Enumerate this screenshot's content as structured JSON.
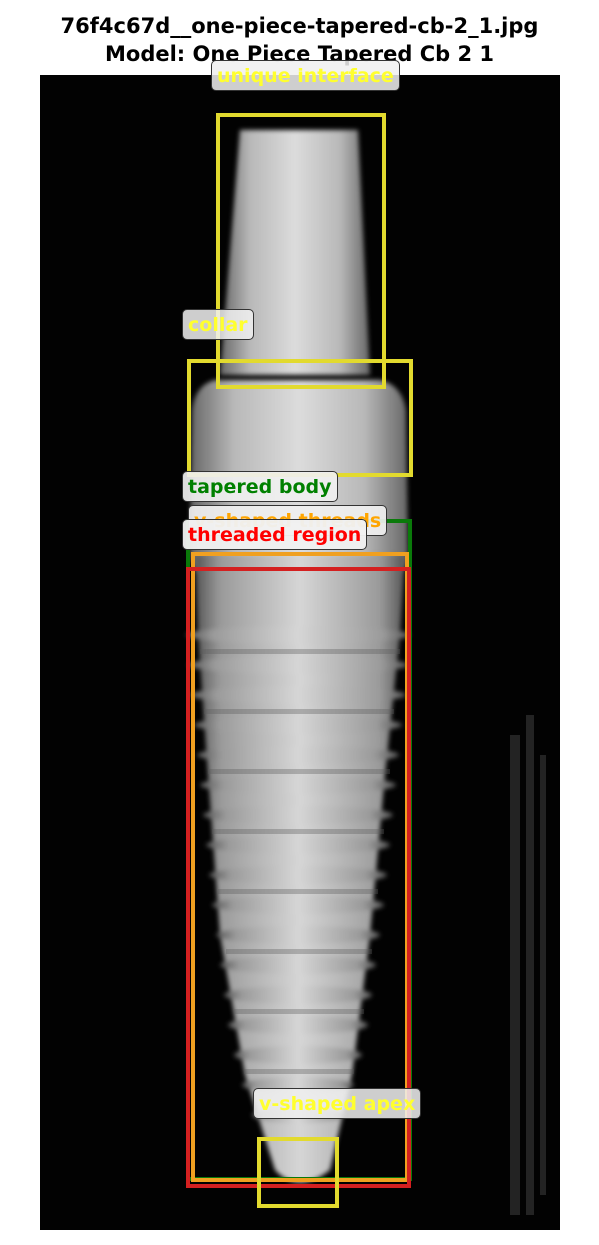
{
  "title": {
    "filename": "76f4c67d__one-piece-tapered-cb-2_1.jpg",
    "model": "Model: One Piece Tapered Cb 2 1"
  },
  "annotations": [
    {
      "key": "unique-interface",
      "label": "unique interface",
      "color": "#FFFF2E"
    },
    {
      "key": "collar",
      "label": "collar",
      "color": "#FFFF2E"
    },
    {
      "key": "tapered-body",
      "label": "tapered body",
      "color": "#008000"
    },
    {
      "key": "v-shaped-threads",
      "label": "v-shaped threads",
      "color": "#FFA500"
    },
    {
      "key": "threaded-region",
      "label": "threaded region",
      "color": "#FF0000"
    },
    {
      "key": "v-shaped-apex",
      "label": "v-shaped apex",
      "color": "#FFFF2E"
    }
  ],
  "colors": {
    "yellow": "#E8E030",
    "green": "#0A7A0A",
    "orange": "#F0A020",
    "red": "#D42020"
  }
}
